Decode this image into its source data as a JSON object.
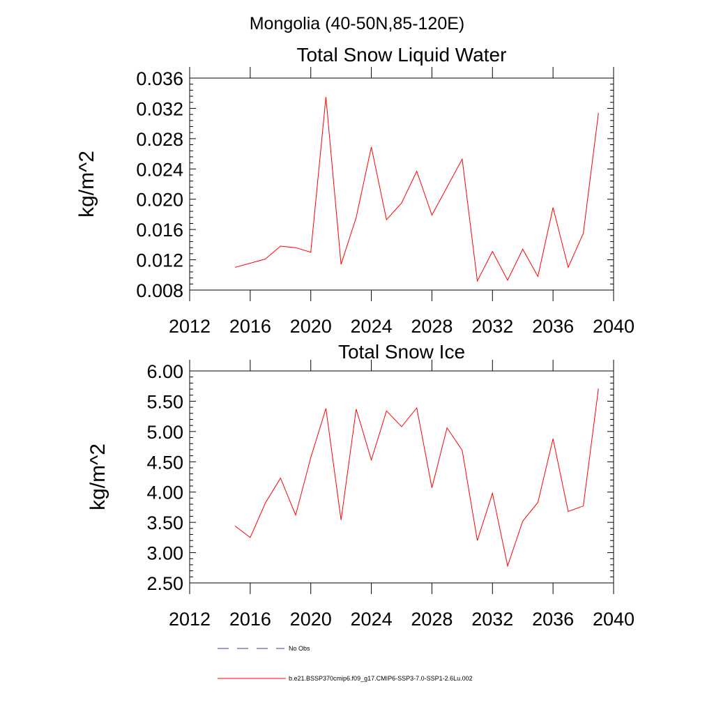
{
  "figure_title": "Mongolia (40-50N,85-120E)",
  "chart_data": [
    {
      "type": "line",
      "title": "Total Snow Liquid Water",
      "xlabel": "",
      "ylabel": "kg/m^2",
      "xlim": [
        2012,
        2040
      ],
      "ylim": [
        0.008,
        0.036
      ],
      "xticks": [
        2012,
        2016,
        2020,
        2024,
        2028,
        2032,
        2036,
        2040
      ],
      "xtick_labels": [
        "2012",
        "2016",
        "2020",
        "2024",
        "2028",
        "2032",
        "2036",
        "2040"
      ],
      "yticks": [
        0.008,
        0.012,
        0.016,
        0.02,
        0.024,
        0.028,
        0.032,
        0.036
      ],
      "ytick_labels": [
        "0.008",
        "0.012",
        "0.016",
        "0.020",
        "0.024",
        "0.028",
        "0.032",
        "0.036"
      ],
      "x": [
        2015,
        2017,
        2018,
        2019,
        2020,
        2021,
        2022,
        2023,
        2024,
        2025,
        2026,
        2027,
        2028,
        2030,
        2031,
        2032,
        2033,
        2034,
        2035,
        2036,
        2037,
        2038,
        2039
      ],
      "series": [
        {
          "name": "b.e21.BSSP370cmip6.f09_g17.CMIP6-SSP3-7.0-SSP1-2.6Lu.002",
          "color": "#ff0000",
          "values": [
            0.011,
            0.0121,
            0.0138,
            0.0136,
            0.013,
            0.0335,
            0.0114,
            0.0176,
            0.0269,
            0.0173,
            0.0195,
            0.0237,
            0.0179,
            0.0253,
            0.0092,
            0.0131,
            0.0093,
            0.0134,
            0.0098,
            0.0189,
            0.011,
            0.0155,
            0.0314
          ]
        }
      ],
      "grid": false
    },
    {
      "type": "line",
      "title": "Total Snow Ice",
      "xlabel": "",
      "ylabel": "kg/m^2",
      "xlim": [
        2012,
        2040
      ],
      "ylim": [
        2.5,
        6.0
      ],
      "xticks": [
        2012,
        2016,
        2020,
        2024,
        2028,
        2032,
        2036,
        2040
      ],
      "xtick_labels": [
        "2012",
        "2016",
        "2020",
        "2024",
        "2028",
        "2032",
        "2036",
        "2040"
      ],
      "yticks": [
        2.5,
        3.0,
        3.5,
        4.0,
        4.5,
        5.0,
        5.5,
        6.0
      ],
      "ytick_labels": [
        "2.50",
        "3.00",
        "3.50",
        "4.00",
        "4.50",
        "5.00",
        "5.50",
        "6.00"
      ],
      "x": [
        2015,
        2016,
        2017,
        2018,
        2019,
        2020,
        2021,
        2022,
        2023,
        2024,
        2025,
        2026,
        2027,
        2028,
        2029,
        2030,
        2031,
        2032,
        2033,
        2034,
        2035,
        2036,
        2037,
        2038,
        2039
      ],
      "series": [
        {
          "name": "b.e21.BSSP370cmip6.f09_g17.CMIP6-SSP3-7.0-SSP1-2.6Lu.002",
          "color": "#ff0000",
          "values": [
            3.44,
            3.25,
            3.82,
            4.23,
            3.62,
            4.57,
            5.38,
            3.54,
            5.37,
            4.53,
            5.34,
            5.08,
            5.39,
            4.07,
            5.06,
            4.69,
            3.2,
            3.98,
            2.78,
            3.52,
            3.83,
            4.88,
            3.68,
            3.77,
            5.71
          ]
        }
      ],
      "grid": false
    }
  ],
  "legend": {
    "position": "bottom",
    "items": [
      {
        "label": "No Obs",
        "color": "#3c3c8c",
        "style": "dashed"
      },
      {
        "label": "b.e21.BSSP370cmip6.f09_g17.CMIP6-SSP3-7.0-SSP1-2.6Lu.002",
        "color": "#ff0000",
        "style": "solid"
      }
    ]
  }
}
